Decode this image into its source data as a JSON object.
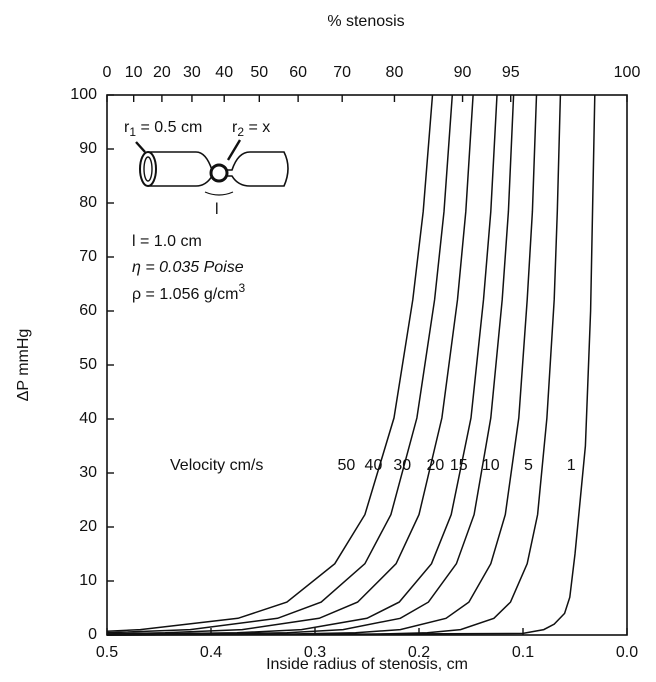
{
  "chart_data": {
    "type": "line",
    "title": "% stenosis",
    "x_label": "Inside radius of stenosis, cm",
    "y_label": "ΔP mmHg",
    "legend_title": "Velocity cm/s",
    "xlim": [
      0.5,
      0
    ],
    "xticks": [
      0.5,
      0.4,
      0.3,
      0.2,
      0.1,
      {
        "value": 0,
        "label": "0.0"
      }
    ],
    "ylim": [
      0,
      100
    ],
    "yticks": [
      0,
      10,
      20,
      30,
      40,
      50,
      60,
      70,
      80,
      90,
      100
    ],
    "x2_scale": "area_stenosis",
    "x2ticks": [
      0,
      10,
      20,
      30,
      40,
      50,
      60,
      70,
      80,
      90,
      95,
      100
    ],
    "series": [
      {
        "name": "50",
        "color": "#111111",
        "x": [
          0.187,
          0.196,
          0.206,
          0.224,
          0.252,
          0.281,
          0.327,
          0.374,
          0.468,
          0.5
        ],
        "values": [
          100,
          78.4,
          62.1,
          40.2,
          22.3,
          13.2,
          6.1,
          3.1,
          1.0,
          0.7
        ]
      },
      {
        "name": "40",
        "color": "#111111",
        "x": [
          0.168,
          0.176,
          0.185,
          0.202,
          0.227,
          0.252,
          0.294,
          0.336,
          0.42,
          0.5
        ],
        "values": [
          100,
          78.4,
          62.1,
          40.2,
          22.3,
          13.2,
          6.1,
          3.1,
          1.0,
          0.4
        ]
      },
      {
        "name": "30",
        "color": "#111111",
        "x": [
          0.148,
          0.155,
          0.163,
          0.178,
          0.2,
          0.222,
          0.259,
          0.296,
          0.37,
          0.444,
          0.5
        ],
        "values": [
          100,
          78.4,
          62.1,
          40.2,
          22.3,
          13.2,
          6.1,
          3.1,
          1.0,
          0.4,
          0.2
        ]
      },
      {
        "name": "20",
        "color": "#111111",
        "x": [
          0.125,
          0.131,
          0.138,
          0.15,
          0.169,
          0.188,
          0.219,
          0.25,
          0.313,
          0.375,
          0.5
        ],
        "values": [
          100,
          78.4,
          62.1,
          40.2,
          22.3,
          13.2,
          6.1,
          3.1,
          1.0,
          0.4,
          0.1
        ]
      },
      {
        "name": "15",
        "color": "#111111",
        "x": [
          0.109,
          0.114,
          0.12,
          0.131,
          0.147,
          0.164,
          0.191,
          0.218,
          0.273,
          0.327,
          0.436,
          0.5
        ],
        "values": [
          100,
          78.4,
          62.1,
          40.2,
          22.3,
          13.2,
          6.1,
          3.1,
          1.0,
          0.4,
          0.1,
          0
        ]
      },
      {
        "name": "10",
        "color": "#111111",
        "x": [
          0.087,
          0.091,
          0.096,
          0.104,
          0.117,
          0.131,
          0.152,
          0.174,
          0.218,
          0.261,
          0.348,
          0.5
        ],
        "values": [
          100,
          78.4,
          62.1,
          40.2,
          22.3,
          13.2,
          6.1,
          3.1,
          1.0,
          0.4,
          0.1,
          0
        ]
      },
      {
        "name": "5",
        "color": "#111111",
        "x": [
          0.064,
          0.067,
          0.07,
          0.077,
          0.086,
          0.096,
          0.112,
          0.128,
          0.16,
          0.192,
          0.256,
          0.5
        ],
        "values": [
          100,
          78.4,
          62.1,
          40.2,
          22.3,
          13.2,
          6.1,
          3.1,
          1.0,
          0.4,
          0.1,
          0
        ]
      },
      {
        "name": "1",
        "color": "#111111",
        "x": [
          0.031,
          0.035,
          0.04,
          0.045,
          0.05,
          0.055,
          0.06,
          0.07,
          0.08,
          0.1,
          0.5
        ],
        "values": [
          100,
          60,
          35,
          25,
          15,
          7,
          4,
          2,
          1,
          0.3,
          0
        ]
      }
    ],
    "inset": {
      "r1": {
        "symbol": "r",
        "sub": "1",
        "text": " = 0.5 cm"
      },
      "r2": {
        "symbol": "r",
        "sub": "2",
        "text": " = x"
      },
      "length_mark": "l",
      "length": "l = 1.0 cm",
      "viscosity": "η = 0.035 Poise",
      "density": {
        "text": "ρ = 1.056 g/cm",
        "sup": "3"
      }
    }
  }
}
